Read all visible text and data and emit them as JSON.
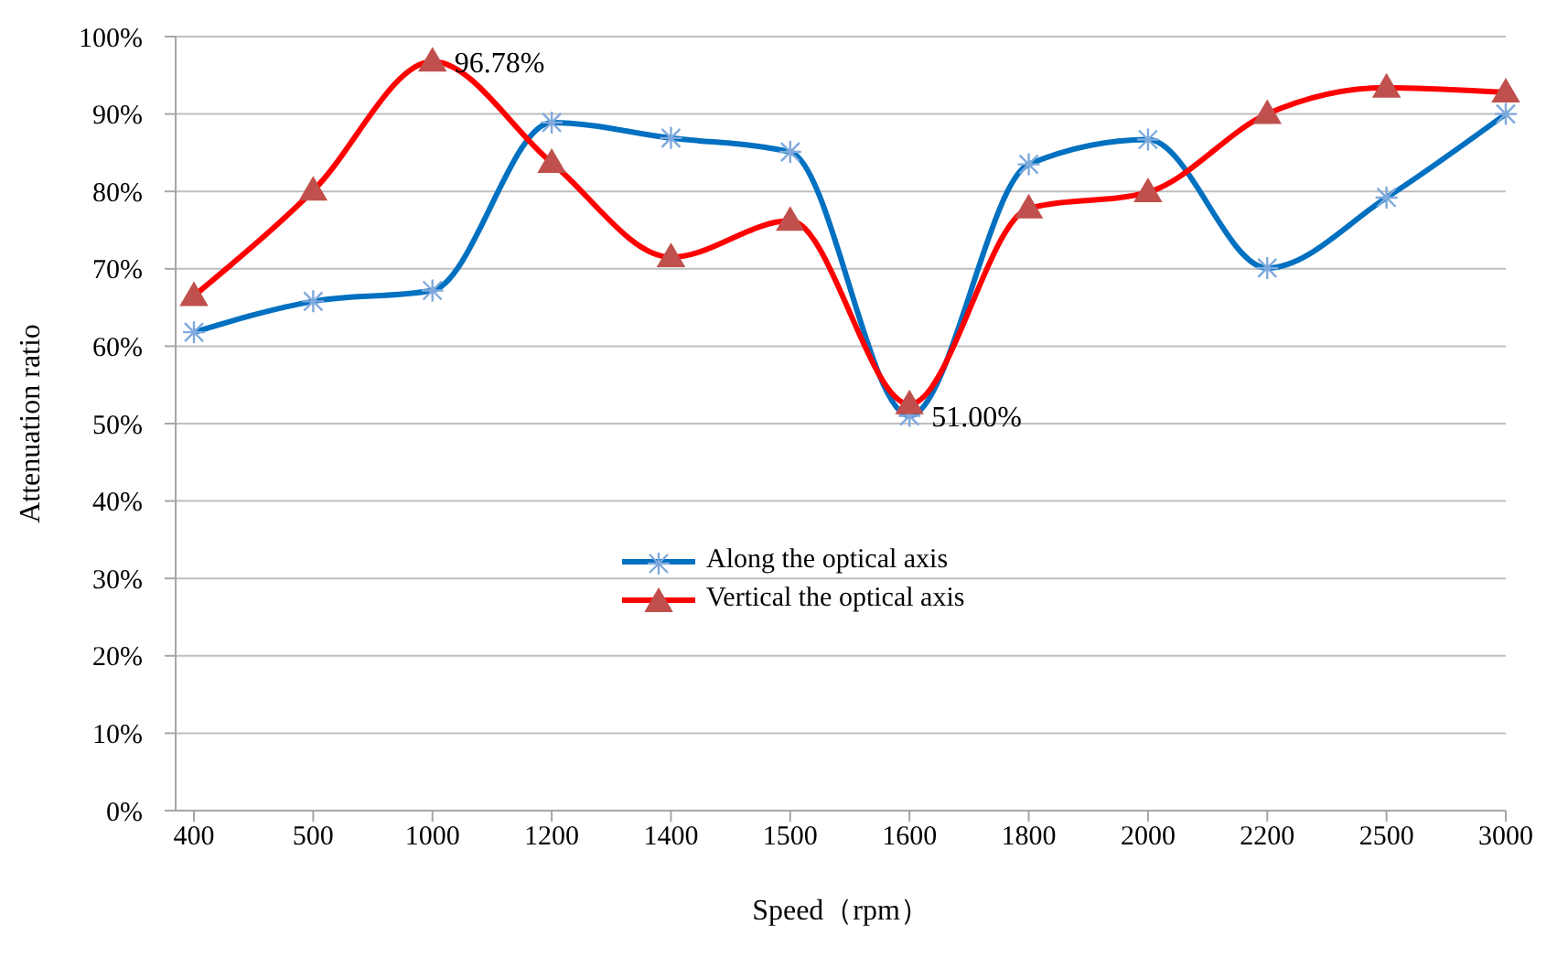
{
  "chart_data": {
    "type": "line",
    "xlabel": "Speed（rpm）",
    "ylabel": "Attenuation ratio",
    "categories": [
      "400",
      "500",
      "1000",
      "1200",
      "1400",
      "1500",
      "1600",
      "1800",
      "2000",
      "2200",
      "2500",
      "3000"
    ],
    "series": [
      {
        "name": "Along the optical axis",
        "color": "#0070c0",
        "marker": "cross",
        "values": [
          61.8,
          65.8,
          67.2,
          88.9,
          86.9,
          85.1,
          51.0,
          83.5,
          86.7,
          70.1,
          79.2,
          90.0
        ]
      },
      {
        "name": "Vertical the optical axis",
        "color": "#ff0000",
        "marker": "triangle",
        "values": [
          66.5,
          80.1,
          96.78,
          83.7,
          71.5,
          76.2,
          52.5,
          77.8,
          79.9,
          90.0,
          93.4,
          92.8
        ]
      }
    ],
    "ylim": [
      0,
      100
    ],
    "yticks": [
      {
        "value": 0,
        "label": "0%"
      },
      {
        "value": 10,
        "label": "10%"
      },
      {
        "value": 20,
        "label": "20%"
      },
      {
        "value": 30,
        "label": "30%"
      },
      {
        "value": 40,
        "label": "40%"
      },
      {
        "value": 50,
        "label": "50%"
      },
      {
        "value": 60,
        "label": "60%"
      },
      {
        "value": 70,
        "label": "70%"
      },
      {
        "value": 80,
        "label": "80%"
      },
      {
        "value": 90,
        "label": "90%"
      },
      {
        "value": 100,
        "label": "100%"
      }
    ],
    "grid": "y",
    "legend": "center",
    "line_style": "solid",
    "annotations": [
      {
        "text": "96.78%",
        "x": "1000",
        "y": 96.78
      },
      {
        "text": "51.00%",
        "x": "1600",
        "y": 51.0
      }
    ]
  }
}
